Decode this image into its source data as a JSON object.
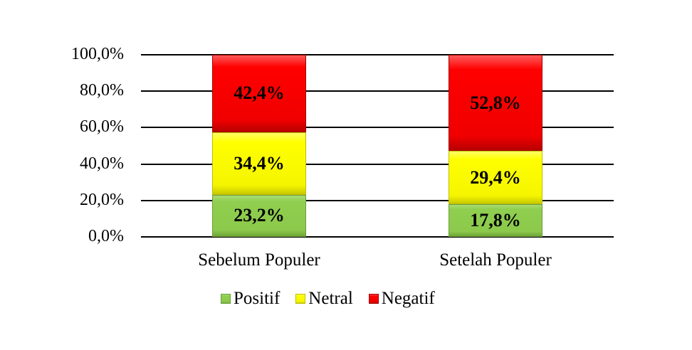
{
  "chart_data": {
    "type": "bar",
    "stacked": true,
    "categories": [
      "Sebelum Populer",
      "Setelah Populer"
    ],
    "series": [
      {
        "name": "Positif",
        "values": [
          23.2,
          17.8
        ],
        "labels": [
          "23,2%",
          "17,8%"
        ],
        "color": "#8cc94c"
      },
      {
        "name": "Netral",
        "values": [
          34.4,
          29.4
        ],
        "labels": [
          "34,4%",
          "29,4%"
        ],
        "color": "#ffff00"
      },
      {
        "name": "Negatif",
        "values": [
          42.4,
          52.8
        ],
        "labels": [
          "42,4%",
          "52,8%"
        ],
        "color": "#ff0000"
      }
    ],
    "title": "",
    "xlabel": "",
    "ylabel": "",
    "ylim": [
      0,
      100
    ],
    "yticks": [
      "0,0%",
      "20,0%",
      "40,0%",
      "60,0%",
      "80,0%",
      "100,0%"
    ],
    "grid": true,
    "legend_position": "bottom"
  }
}
